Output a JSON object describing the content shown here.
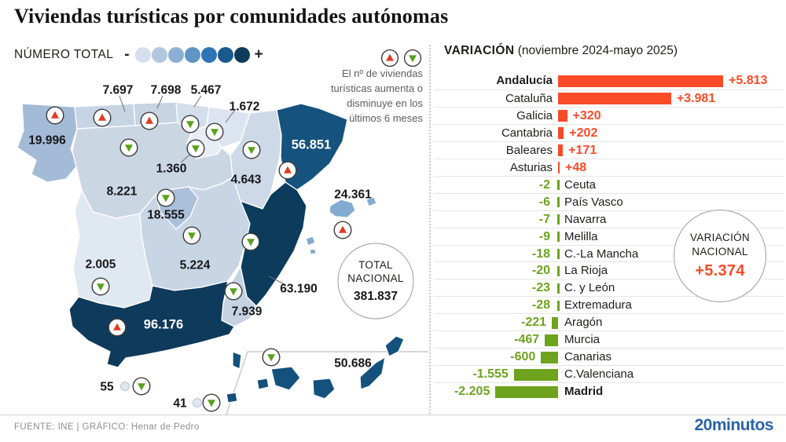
{
  "title": "Viviendas turísticas por comunidades autónomas",
  "chart_data": [
    {
      "type": "bar",
      "orientation": "horizontal",
      "title": "VARIACIÓN",
      "subtitle": "(noviembre 2024-mayo 2025)",
      "positive_color": "#f94b28",
      "negative_color": "#6da31d",
      "national_line1": "VARIACIÓN",
      "national_line2": "NACIONAL",
      "national_value": "+5.374",
      "rows": [
        {
          "region": "Andalucía",
          "value": 5813,
          "label": "+5.813",
          "bold": true
        },
        {
          "region": "Cataluña",
          "value": 3981,
          "label": "+3.981"
        },
        {
          "region": "Galicia",
          "value": 320,
          "label": "+320"
        },
        {
          "region": "Cantabria",
          "value": 202,
          "label": "+202"
        },
        {
          "region": "Baleares",
          "value": 171,
          "label": "+171"
        },
        {
          "region": "Asturias",
          "value": 48,
          "label": "+48"
        },
        {
          "region": "Ceuta",
          "value": -2,
          "label": "-2"
        },
        {
          "region": "País Vasco",
          "value": -6,
          "label": "-6"
        },
        {
          "region": "Navarra",
          "value": -7,
          "label": "-7"
        },
        {
          "region": "Melilla",
          "value": -9,
          "label": "-9"
        },
        {
          "region": "C.-La Mancha",
          "value": -18,
          "label": "-18"
        },
        {
          "region": "La Rioja",
          "value": -20,
          "label": "-20"
        },
        {
          "region": "C. y León",
          "value": -23,
          "label": "-23"
        },
        {
          "region": "Extremadura",
          "value": -28,
          "label": "-28"
        },
        {
          "region": "Aragón",
          "value": -221,
          "label": "-221"
        },
        {
          "region": "Murcia",
          "value": -467,
          "label": "-467"
        },
        {
          "region": "Canarias",
          "value": -600,
          "label": "-600"
        },
        {
          "region": "C.Valenciana",
          "value": -1555,
          "label": "-1.555"
        },
        {
          "region": "Madrid",
          "value": -2205,
          "label": "-2.205",
          "bold": true
        }
      ]
    },
    {
      "type": "table",
      "title": "NÚMERO TOTAL",
      "note": "El nº de viviendas turísticas aumenta o disminuye en los últimos 6 meses",
      "legend_minus": "-",
      "legend_plus": "+",
      "legend_colors": [
        "#d4e0ec",
        "#b0c7de",
        "#8cb0d4",
        "#6094c5",
        "#2f74b5",
        "#195a8c",
        "#0f3a5a"
      ],
      "up_color": "#e23b24",
      "down_color": "#58a21c",
      "total": {
        "line1": "TOTAL",
        "line2": "NACIONAL",
        "value": "381.837"
      },
      "regions": [
        {
          "name": "Galicia",
          "total": "19.996",
          "trend": "up",
          "fill": "#a3bbd6"
        },
        {
          "name": "Asturias",
          "total": "7.697",
          "trend": "up",
          "fill": "#c6d4e4"
        },
        {
          "name": "Cantabria",
          "total": "7.698",
          "trend": "up",
          "fill": "#c6d4e4"
        },
        {
          "name": "País Vasco",
          "total": "5.467",
          "trend": "down",
          "fill": "#d3deea"
        },
        {
          "name": "Navarra",
          "total": "1.672",
          "trend": "down",
          "fill": "#dce5ef"
        },
        {
          "name": "La Rioja",
          "total": "1.360",
          "trend": "down",
          "fill": "#e8edf4"
        },
        {
          "name": "Aragón",
          "total": "4.643",
          "trend": "down",
          "fill": "#cdd9e7"
        },
        {
          "name": "Cataluña",
          "total": "56.851",
          "trend": "up",
          "fill": "#16527e"
        },
        {
          "name": "Castilla y León",
          "total": "8.221",
          "trend": "down",
          "fill": "#cbd6e3"
        },
        {
          "name": "Madrid",
          "total": "18.555",
          "trend": "down",
          "fill": "#abc0da"
        },
        {
          "name": "Castilla-La Mancha",
          "total": "5.224",
          "trend": "down",
          "fill": "#c8d5e5"
        },
        {
          "name": "Extremadura",
          "total": "2.005",
          "trend": "down",
          "fill": "#e0e8f1"
        },
        {
          "name": "C. Valenciana",
          "total": "63.190",
          "trend": "down",
          "fill": "#0d3b5c"
        },
        {
          "name": "Murcia",
          "total": "7.939",
          "trend": "down",
          "fill": "#c4d2e2"
        },
        {
          "name": "Andalucía",
          "total": "96.176",
          "trend": "up",
          "fill": "#0e3a5c"
        },
        {
          "name": "Baleares",
          "total": "24.361",
          "trend": "up",
          "fill": "#83aad0"
        },
        {
          "name": "Canarias",
          "total": "50.686",
          "trend": "down",
          "fill": "#14517d"
        },
        {
          "name": "Ceuta",
          "total": "55",
          "trend": "down",
          "fill": "#dfe7f0"
        },
        {
          "name": "Melilla",
          "total": "41",
          "trend": "down",
          "fill": "#dfe7f0"
        }
      ]
    }
  ],
  "footer": {
    "source": "FUENTE: INE  |  GRÁFICO: Henar de Pedro",
    "logo": "20minutos"
  }
}
